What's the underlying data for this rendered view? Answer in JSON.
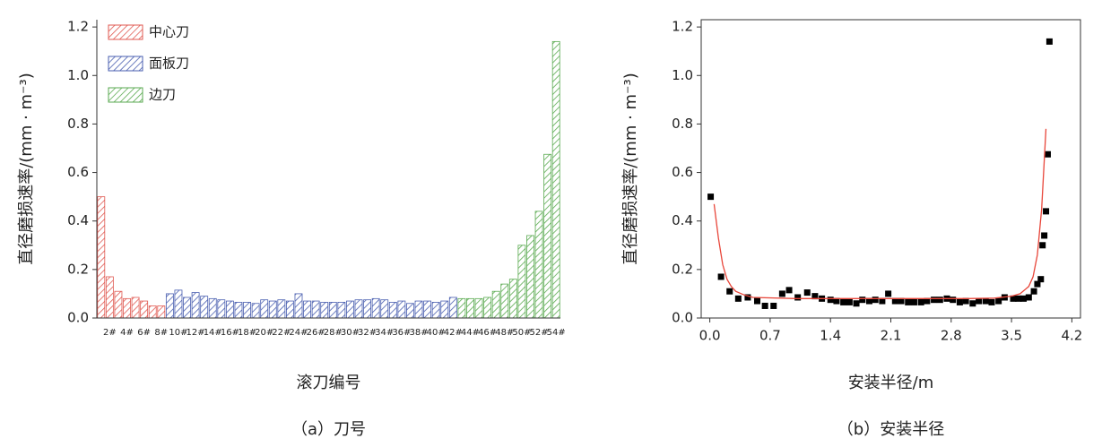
{
  "chart_data": [
    {
      "type": "bar",
      "ylabel": "直径磨损速率/(mm · m⁻³)",
      "xlabel": "滚刀编号",
      "caption": "（a）刀号",
      "categories": [
        null,
        "2#",
        null,
        "4#",
        null,
        "6#",
        null,
        "8#",
        null,
        "10#",
        null,
        "12#",
        null,
        "14#",
        null,
        "16#",
        null,
        "18#",
        null,
        "20#",
        null,
        "22#",
        null,
        "24#",
        null,
        "26#",
        null,
        "28#",
        null,
        "30#",
        null,
        "32#",
        null,
        "34#",
        null,
        "36#",
        null,
        "38#",
        null,
        "40#",
        null,
        "42#",
        null,
        "44#",
        null,
        "46#",
        null,
        "48#",
        null,
        "50#",
        null,
        "52#",
        null,
        "54#"
      ],
      "series": [
        {
          "name": "中心刀",
          "color": "#e05a52",
          "values": [
            0.5,
            0.17,
            0.11,
            0.08,
            0.085,
            0.07,
            0.05,
            0.05,
            null,
            null,
            null,
            null,
            null,
            null,
            null,
            null,
            null,
            null,
            null,
            null,
            null,
            null,
            null,
            null,
            null,
            null,
            null,
            null,
            null,
            null,
            null,
            null,
            null,
            null,
            null,
            null,
            null,
            null,
            null,
            null,
            null,
            null,
            null,
            null,
            null,
            null,
            null,
            null,
            null,
            null,
            null,
            null,
            null,
            null
          ]
        },
        {
          "name": "面板刀",
          "color": "#4a5fb0",
          "values": [
            null,
            null,
            null,
            null,
            null,
            null,
            null,
            null,
            0.1,
            0.115,
            0.085,
            0.105,
            0.09,
            0.08,
            0.075,
            0.07,
            0.065,
            0.065,
            0.06,
            0.075,
            0.07,
            0.075,
            0.07,
            0.1,
            0.07,
            0.07,
            0.065,
            0.065,
            0.065,
            0.07,
            0.075,
            0.075,
            0.08,
            0.075,
            0.065,
            0.07,
            0.06,
            0.07,
            0.07,
            0.065,
            0.07,
            0.085,
            null,
            null,
            null,
            null,
            null,
            null,
            null,
            null,
            null,
            null,
            null,
            null
          ]
        },
        {
          "name": "边刀",
          "color": "#5aaa50",
          "values": [
            null,
            null,
            null,
            null,
            null,
            null,
            null,
            null,
            null,
            null,
            null,
            null,
            null,
            null,
            null,
            null,
            null,
            null,
            null,
            null,
            null,
            null,
            null,
            null,
            null,
            null,
            null,
            null,
            null,
            null,
            null,
            null,
            null,
            null,
            null,
            null,
            null,
            null,
            null,
            null,
            null,
            null,
            0.08,
            0.08,
            0.08,
            0.085,
            0.11,
            0.14,
            0.16,
            0.3,
            0.34,
            0.44,
            0.675,
            1.14
          ]
        }
      ],
      "ylim": [
        0,
        1.23
      ],
      "yticks": [
        {
          "value": 0,
          "label": "0.0"
        },
        0.2,
        0.4,
        0.6,
        0.8,
        {
          "value": 1,
          "label": "1.0"
        },
        1.2
      ],
      "legend": "upper left"
    },
    {
      "type": "scatter",
      "ylabel": "直径磨损速率/(mm · m⁻³)",
      "xlabel": "安装半径/m",
      "caption": "（b）安装半径",
      "series": [
        {
          "type": "scatter",
          "color": "#000000",
          "x": [
            0.01,
            0.13,
            0.23,
            0.33,
            0.44,
            0.55,
            0.64,
            0.74,
            0.84,
            0.92,
            1.02,
            1.13,
            1.22,
            1.3,
            1.4,
            1.47,
            1.55,
            1.62,
            1.7,
            1.77,
            1.85,
            1.92,
            2.0,
            2.07,
            2.15,
            2.22,
            2.3,
            2.37,
            2.45,
            2.52,
            2.6,
            2.67,
            2.75,
            2.82,
            2.9,
            2.97,
            3.05,
            3.12,
            3.2,
            3.27,
            3.35,
            3.42,
            3.52,
            3.58,
            3.64,
            3.7,
            3.76,
            3.8,
            3.84,
            3.86,
            3.88,
            3.9,
            3.92,
            3.94
          ],
          "values": [
            0.5,
            0.17,
            0.11,
            0.08,
            0.085,
            0.07,
            0.05,
            0.05,
            0.1,
            0.115,
            0.085,
            0.105,
            0.09,
            0.08,
            0.075,
            0.07,
            0.065,
            0.065,
            0.06,
            0.075,
            0.07,
            0.075,
            0.07,
            0.1,
            0.07,
            0.07,
            0.065,
            0.065,
            0.065,
            0.07,
            0.075,
            0.075,
            0.08,
            0.075,
            0.065,
            0.07,
            0.06,
            0.07,
            0.07,
            0.065,
            0.07,
            0.085,
            0.08,
            0.08,
            0.08,
            0.085,
            0.11,
            0.14,
            0.16,
            0.3,
            0.34,
            0.44,
            0.675,
            1.14
          ]
        },
        {
          "type": "line",
          "color": "#e8463a",
          "x": [
            0.05,
            0.1,
            0.15,
            0.2,
            0.25,
            0.3,
            0.4,
            0.5,
            1,
            1.5,
            2,
            2.5,
            3,
            3.3,
            3.5,
            3.6,
            3.7,
            3.75,
            3.8,
            3.85,
            3.9
          ],
          "values": [
            0.47,
            0.33,
            0.22,
            0.16,
            0.13,
            0.11,
            0.095,
            0.085,
            0.08,
            0.08,
            0.08,
            0.08,
            0.08,
            0.082,
            0.09,
            0.1,
            0.13,
            0.17,
            0.26,
            0.45,
            0.78
          ]
        }
      ],
      "xlim": [
        -0.1,
        4.3
      ],
      "xticks": [
        {
          "value": 0,
          "label": "0.0"
        },
        0.7,
        1.4,
        2.1,
        2.8,
        3.5,
        4.2
      ],
      "ylim": [
        0,
        1.23
      ],
      "yticks": [
        {
          "value": 0,
          "label": "0.0"
        },
        0.2,
        0.4,
        0.6,
        0.8,
        {
          "value": 1,
          "label": "1.0"
        },
        1.2
      ]
    }
  ]
}
